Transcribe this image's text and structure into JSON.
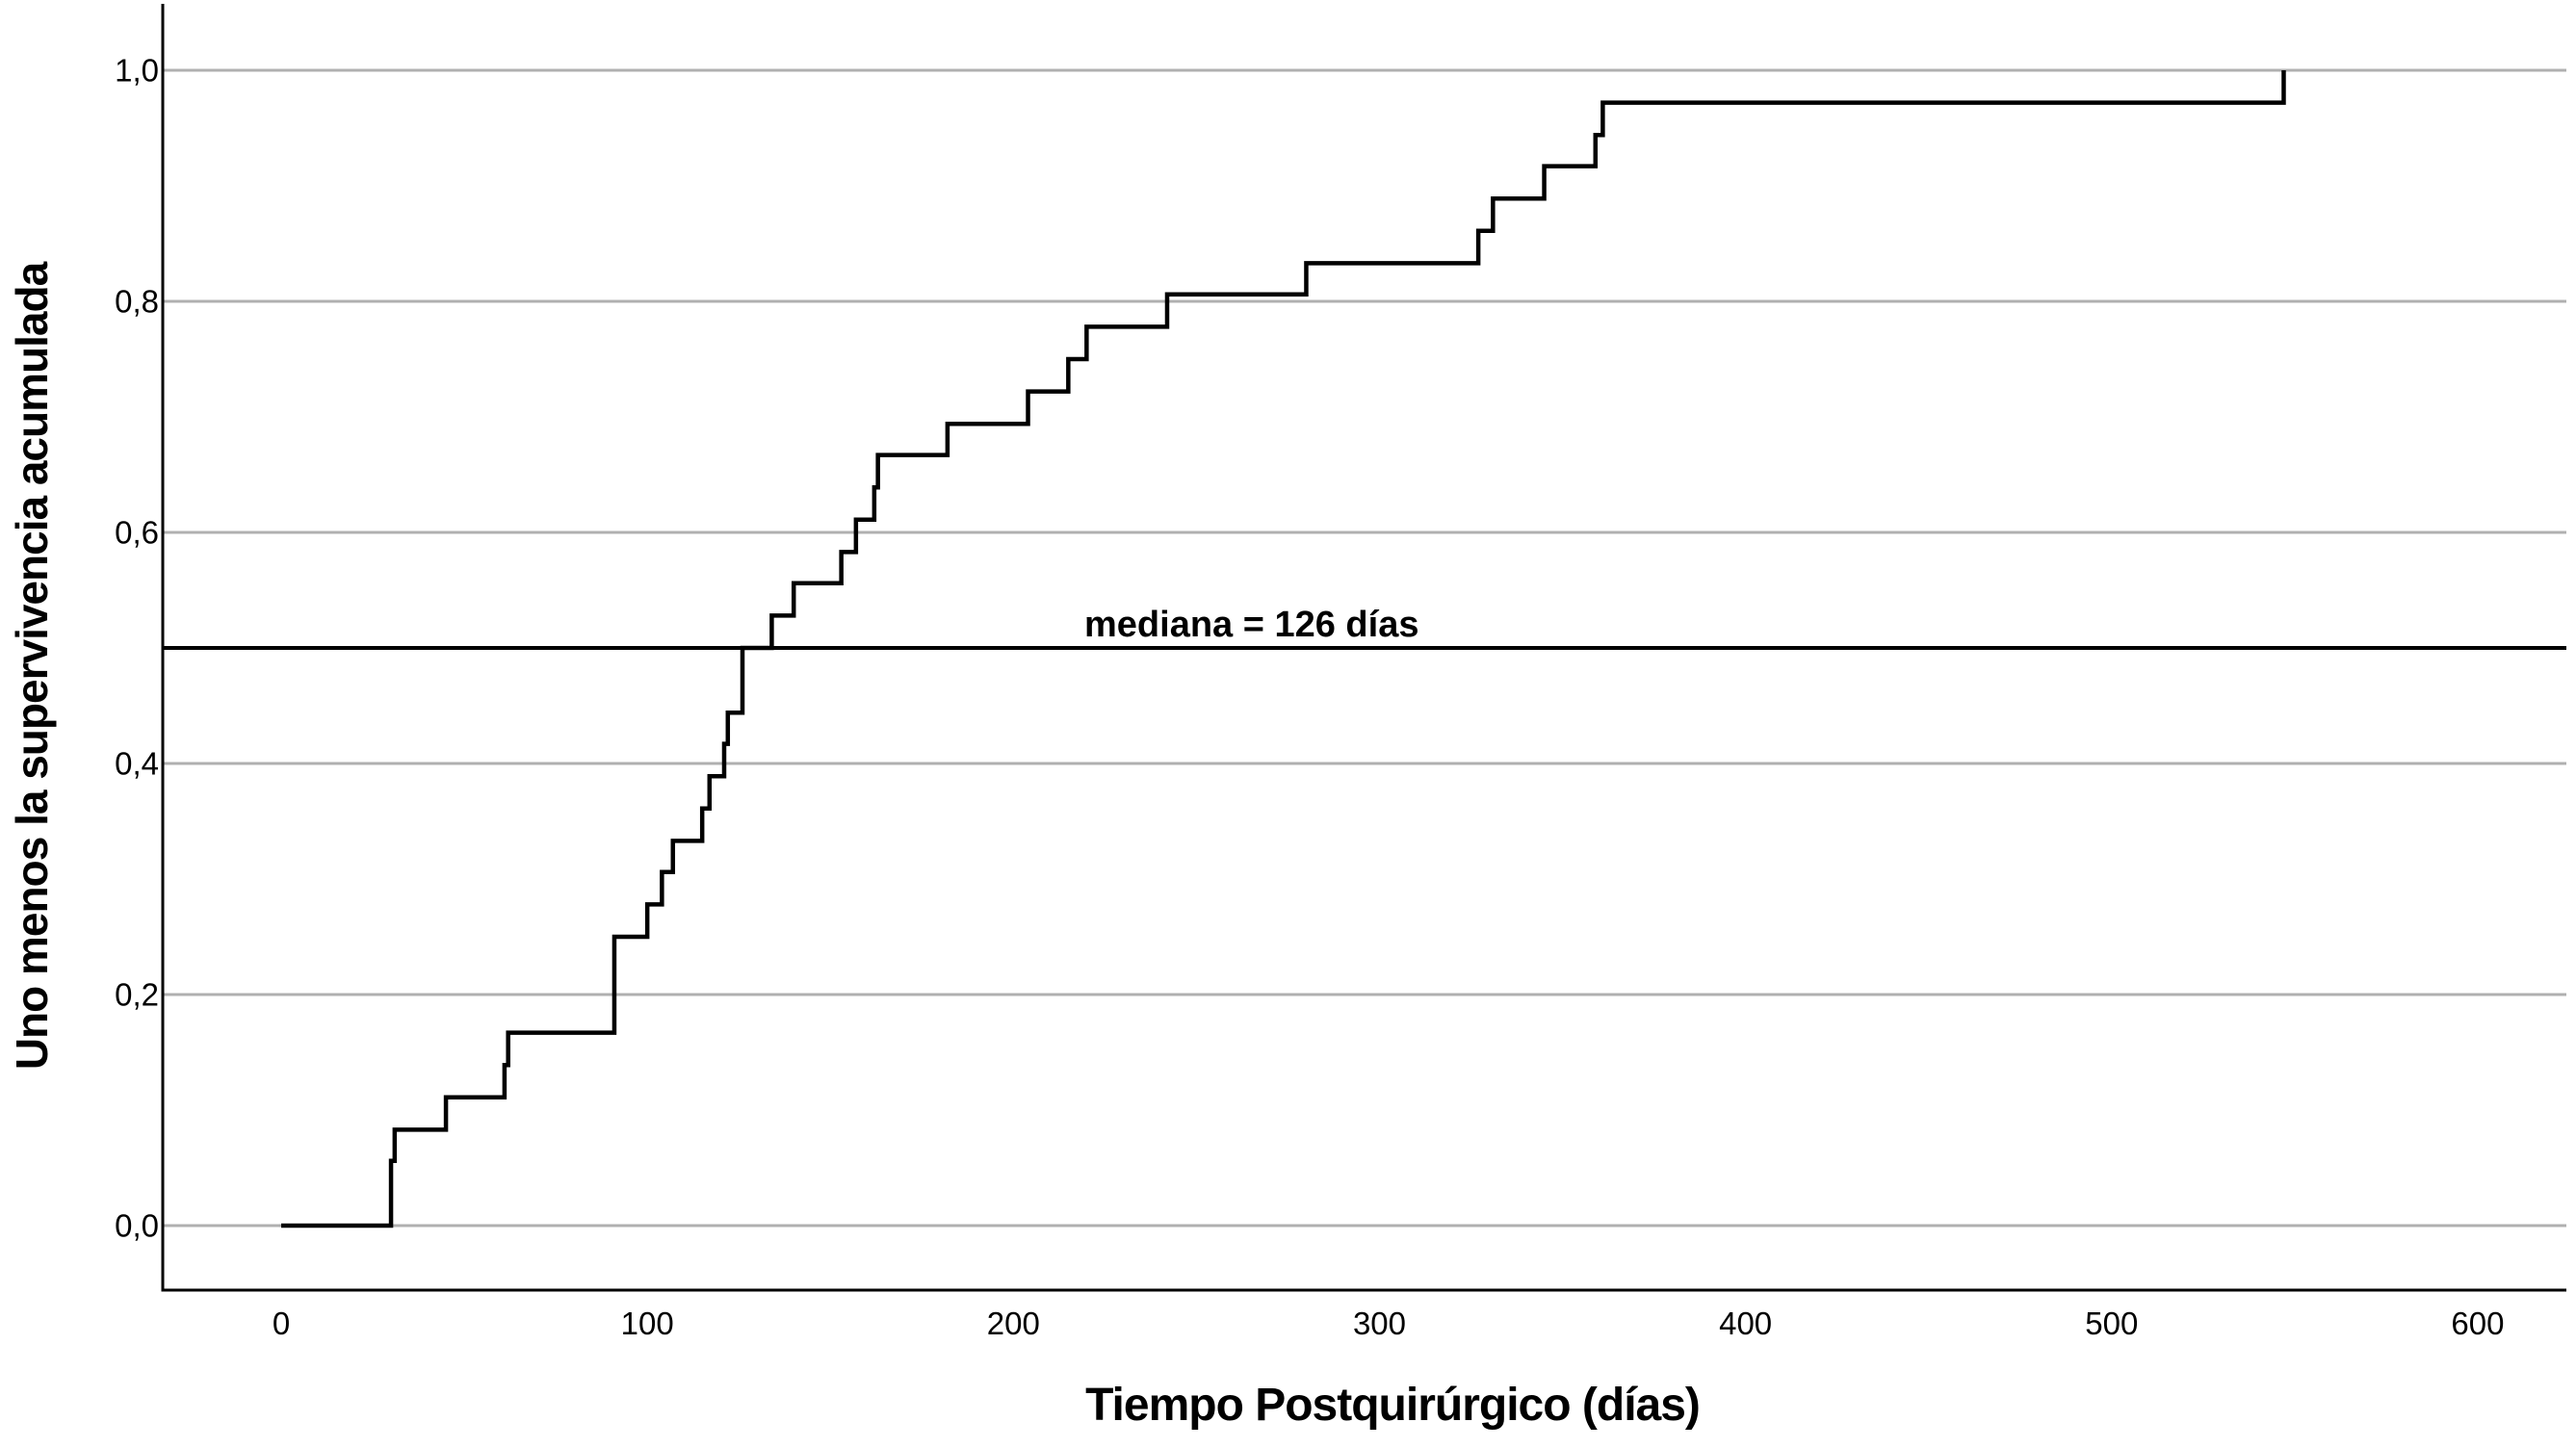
{
  "figure": {
    "background_color": "#ffffff",
    "curve_color": "#000000",
    "gridline_color": "#b0b0b0",
    "axis_color": "#000000",
    "text_color": "#000000"
  },
  "chart_data": {
    "type": "line",
    "subtype": "kaplan-meier-one-minus-survival-step",
    "title": "",
    "xlabel": "Tiempo Postquirúrgico (días)",
    "ylabel": "Uno menos la supervivencia acumulada",
    "grid": "horizontal-only",
    "legend": "none",
    "xlim": [
      0,
      624
    ],
    "ylim": [
      0,
      1.057
    ],
    "x_ticks": [
      {
        "label": "0",
        "value": 0
      },
      {
        "label": "100",
        "value": 100
      },
      {
        "label": "200",
        "value": 200
      },
      {
        "label": "300",
        "value": 300
      },
      {
        "label": "400",
        "value": 400
      },
      {
        "label": "500",
        "value": 500
      },
      {
        "label": "600",
        "value": 600
      }
    ],
    "y_ticks": [
      {
        "label": "0,0",
        "value": 0.0
      },
      {
        "label": "0,2",
        "value": 0.2
      },
      {
        "label": "0,4",
        "value": 0.4
      },
      {
        "label": "0,6",
        "value": 0.6
      },
      {
        "label": "0,8",
        "value": 0.8
      },
      {
        "label": "1,0",
        "value": 1.0
      }
    ],
    "median_line": {
      "y_value": 0.5,
      "label": "mediana = 126 días",
      "median_days": 126
    },
    "steps": [
      {
        "t": 0,
        "cum": 0.0
      },
      {
        "t": 30,
        "cum": 0.056
      },
      {
        "t": 31,
        "cum": 0.083
      },
      {
        "t": 45,
        "cum": 0.111
      },
      {
        "t": 61,
        "cum": 0.139
      },
      {
        "t": 62,
        "cum": 0.167
      },
      {
        "t": 91,
        "cum": 0.25
      },
      {
        "t": 100,
        "cum": 0.278
      },
      {
        "t": 104,
        "cum": 0.306
      },
      {
        "t": 107,
        "cum": 0.333
      },
      {
        "t": 115,
        "cum": 0.361
      },
      {
        "t": 117,
        "cum": 0.389
      },
      {
        "t": 121,
        "cum": 0.417
      },
      {
        "t": 122,
        "cum": 0.444
      },
      {
        "t": 126,
        "cum": 0.5
      },
      {
        "t": 134,
        "cum": 0.528
      },
      {
        "t": 140,
        "cum": 0.556
      },
      {
        "t": 153,
        "cum": 0.583
      },
      {
        "t": 157,
        "cum": 0.611
      },
      {
        "t": 162,
        "cum": 0.639
      },
      {
        "t": 163,
        "cum": 0.667
      },
      {
        "t": 182,
        "cum": 0.694
      },
      {
        "t": 204,
        "cum": 0.722
      },
      {
        "t": 215,
        "cum": 0.75
      },
      {
        "t": 220,
        "cum": 0.778
      },
      {
        "t": 242,
        "cum": 0.806
      },
      {
        "t": 280,
        "cum": 0.833
      },
      {
        "t": 327,
        "cum": 0.861
      },
      {
        "t": 331,
        "cum": 0.889
      },
      {
        "t": 345,
        "cum": 0.917
      },
      {
        "t": 359,
        "cum": 0.944
      },
      {
        "t": 361,
        "cum": 0.972
      },
      {
        "t": 547,
        "cum": 1.0
      }
    ]
  }
}
